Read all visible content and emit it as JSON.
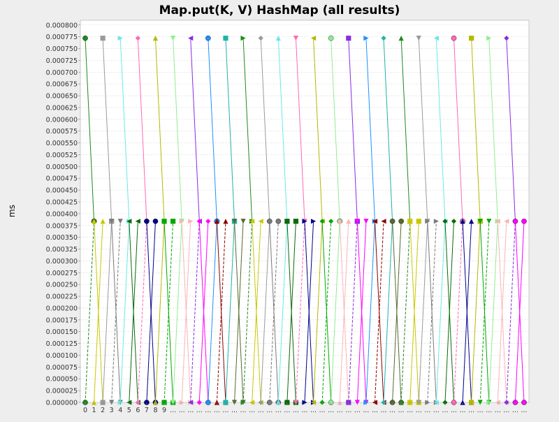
{
  "chart_data": {
    "type": "line",
    "title": "Map.put(K, V) HashMap (all results)",
    "xlabel": "",
    "ylabel": "ms",
    "ylim": [
      0.0,
      0.00081
    ],
    "y_ticks": [
      "0.000000",
      "0.000025",
      "0.000050",
      "0.000075",
      "0.000100",
      "0.000125",
      "0.000150",
      "0.000175",
      "0.000200",
      "0.000225",
      "0.000250",
      "0.000275",
      "0.000300",
      "0.000325",
      "0.000350",
      "0.000375",
      "0.000400",
      "0.000425",
      "0.000450",
      "0.000475",
      "0.000500",
      "0.000525",
      "0.000550",
      "0.000575",
      "0.000600",
      "0.000625",
      "0.000650",
      "0.000675",
      "0.000700",
      "0.000725",
      "0.000750",
      "0.000775",
      "0.000800"
    ],
    "x_labels": [
      "0",
      "1",
      "2",
      "3",
      "4",
      "5",
      "6",
      "7",
      "8",
      "9",
      "...",
      "...",
      "...",
      "...",
      "...",
      "...",
      "...",
      "...",
      "...",
      "...",
      "...",
      "...",
      "...",
      "...",
      "...",
      "...",
      "...",
      "...",
      "...",
      "...",
      "...",
      "...",
      "...",
      "...",
      "...",
      "...",
      "...",
      "...",
      "...",
      "...",
      "...",
      "...",
      "...",
      "...",
      "...",
      "...",
      "...",
      "...",
      "...",
      "...",
      "..."
    ],
    "grid": true,
    "legend": "none",
    "levels": {
      "high": 0.000772,
      "mid": 0.000384,
      "low": 0.0
    },
    "series_colors": [
      "#1e8a1e",
      "#c8c800",
      "#9a9a9a",
      "#7a7a7a",
      "#6ae8e8",
      "#0a6a0a",
      "#ff69b4",
      "#00008b",
      "#b5b800",
      "#00a800",
      "#90ee90",
      "#fbb4b4",
      "#8a2be2",
      "#ff00ff",
      "#1e90ff",
      "#8b0000",
      "#20b2aa",
      "#556b2f"
    ],
    "series_count": 50,
    "x_count": 51
  }
}
